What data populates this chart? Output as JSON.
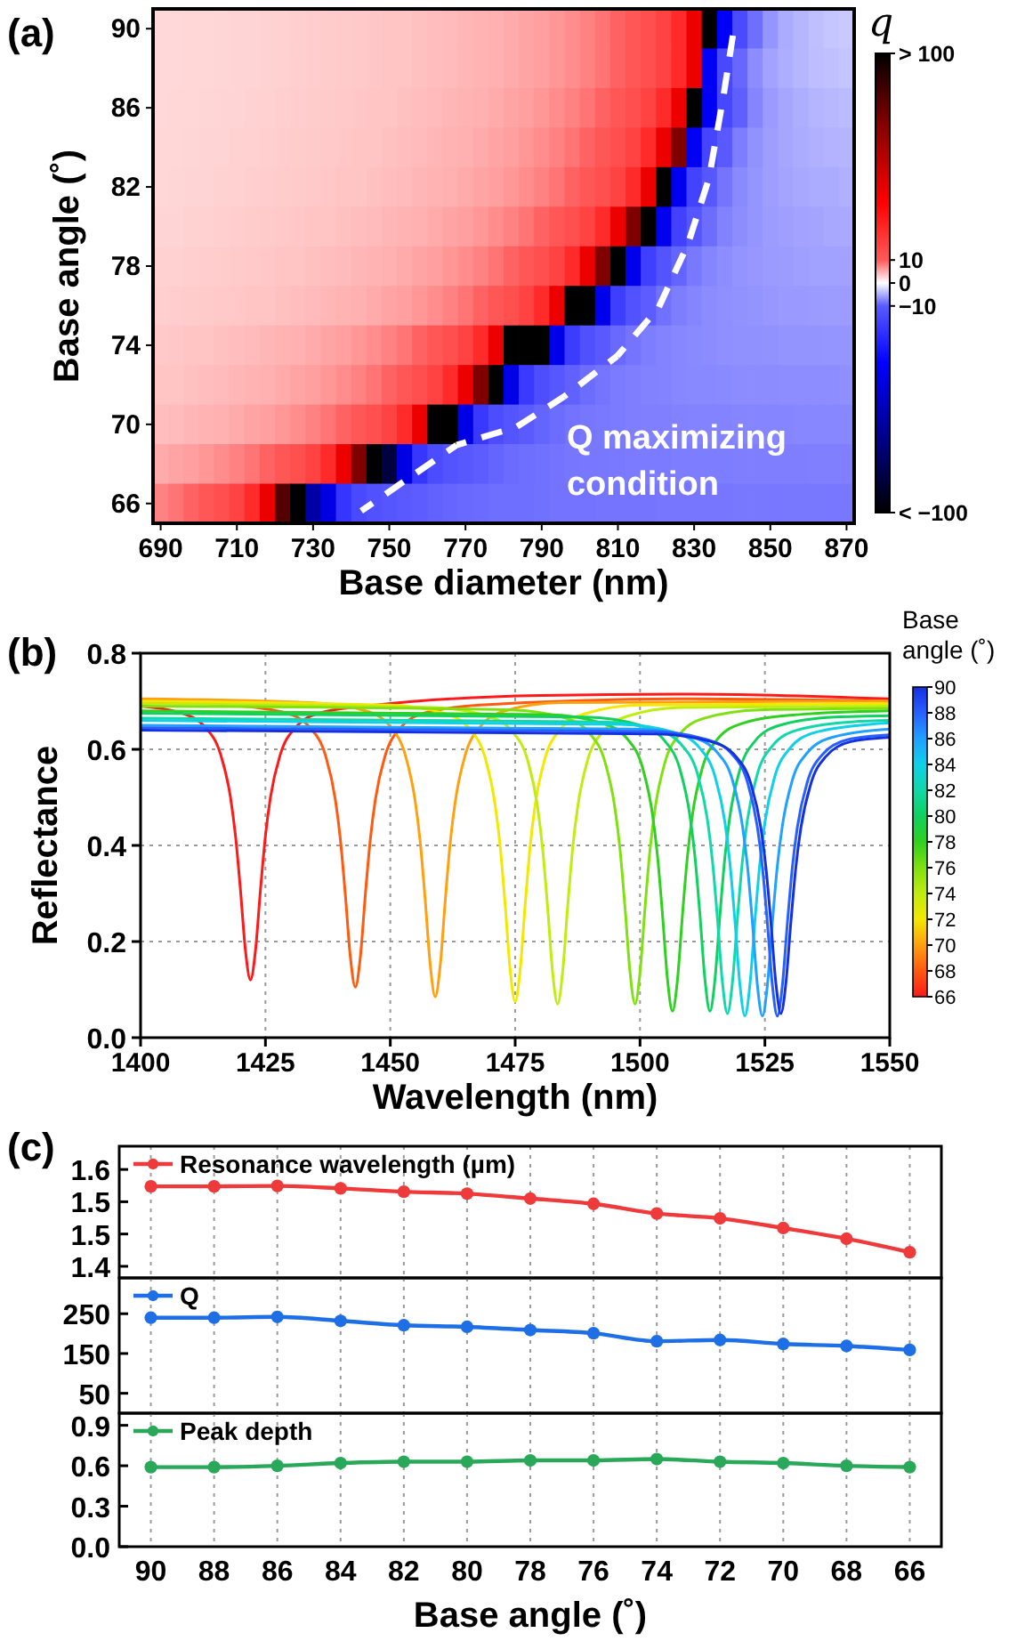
{
  "chart_data": [
    {
      "type": "heatmap",
      "title": "(a)",
      "xlabel": "Base diameter (nm)",
      "ylabel": "Base angle (˚)",
      "clabel": "q",
      "categories": [
        "690",
        null,
        null,
        null,
        null,
        "710",
        null,
        null,
        null,
        null,
        "730",
        null,
        null,
        null,
        null,
        "750",
        null,
        null,
        null,
        null,
        "770",
        null,
        null,
        null,
        null,
        "790",
        null,
        null,
        null,
        null,
        "810",
        null,
        null,
        null,
        null,
        "830",
        null,
        null,
        null,
        null,
        "850",
        null,
        null,
        null,
        null,
        "870"
      ],
      "y_categories": [
        "90",
        null,
        "86",
        null,
        "82",
        null,
        "78",
        null,
        "74",
        null,
        "70",
        null,
        "66"
      ],
      "cells": [
        [
          2.3,
          2.3,
          2.4,
          2.4,
          2.5,
          2.6,
          2.6,
          2.7,
          2.8,
          2.9,
          3,
          3.1,
          3.2,
          3.3,
          3.4,
          3.5,
          3.6,
          3.8,
          4,
          4.1,
          4.4,
          4.6,
          4.8,
          5.1,
          5.5,
          5.8,
          6.3,
          6.9,
          7.6,
          8.4,
          9.5,
          11,
          13,
          16.5,
          23,
          40,
          100,
          -37,
          -14.4,
          -8.7,
          -6.4,
          -5.1,
          -4.4,
          -3.9,
          -3.5,
          -3.3
        ],
        [
          2.3,
          2.3,
          2.4,
          2.4,
          2.5,
          2.6,
          2.6,
          2.7,
          2.8,
          2.9,
          3,
          3.1,
          3.2,
          3.3,
          3.4,
          3.5,
          3.6,
          3.8,
          4,
          4.1,
          4.4,
          4.6,
          4.8,
          5.1,
          5.5,
          5.8,
          6.3,
          6.9,
          7.6,
          8.4,
          9.5,
          11,
          13,
          16.5,
          23,
          40,
          -37.5,
          -14.9,
          -9.2,
          -6.9,
          -5.6,
          -4.9,
          -4.4,
          -4,
          -3.8,
          -3.6
        ],
        [
          2.3,
          2.4,
          2.4,
          2.5,
          2.6,
          2.6,
          2.7,
          2.8,
          2.9,
          3,
          3.1,
          3.2,
          3.3,
          3.4,
          3.5,
          3.6,
          3.8,
          4,
          4.1,
          4.4,
          4.6,
          4.8,
          5.1,
          5.5,
          5.8,
          6.3,
          6.9,
          7.6,
          8.4,
          9.5,
          11,
          13,
          16.5,
          23,
          40,
          100,
          -38,
          -15.4,
          -9.7,
          -7.4,
          -6.1,
          -5.4,
          -4.9,
          -4.5,
          -4.3,
          -4.1
        ],
        [
          2.4,
          2.4,
          2.5,
          2.6,
          2.6,
          2.7,
          2.8,
          2.9,
          3,
          3.1,
          3.2,
          3.3,
          3.4,
          3.5,
          3.6,
          3.8,
          4,
          4.1,
          4.4,
          4.6,
          4.8,
          5.1,
          5.5,
          5.8,
          6.3,
          6.9,
          7.6,
          8.4,
          9.5,
          11,
          13,
          16.5,
          23,
          40,
          70,
          -38.5,
          -15.9,
          -10.2,
          -7.9,
          -6.6,
          -5.9,
          -5.4,
          -5,
          -4.8,
          -4.6,
          -4.5
        ],
        [
          2.4,
          2.5,
          2.6,
          2.6,
          2.7,
          2.8,
          2.9,
          3,
          3.1,
          3.2,
          3.3,
          3.4,
          3.5,
          3.6,
          3.8,
          4,
          4.1,
          4.4,
          4.6,
          4.8,
          5.1,
          5.5,
          5.8,
          6.3,
          6.9,
          7.6,
          8.4,
          9.5,
          11,
          13,
          16.5,
          23,
          40,
          100,
          -39,
          -16.4,
          -10.7,
          -8.4,
          -7.1,
          -6.4,
          -5.9,
          -5.5,
          -5.3,
          -5.1,
          -5,
          -4.8
        ],
        [
          2.6,
          2.6,
          2.7,
          2.8,
          2.9,
          3,
          3.1,
          3.2,
          3.3,
          3.4,
          3.5,
          3.6,
          3.8,
          4,
          4.1,
          4.4,
          4.6,
          4.8,
          5.1,
          5.5,
          5.8,
          6.3,
          6.9,
          7.6,
          8.4,
          9.5,
          11,
          13,
          16.5,
          23,
          40,
          70,
          100,
          -39.5,
          -16.9,
          -11.2,
          -8.9,
          -7.6,
          -6.9,
          -6.4,
          -6,
          -5.8,
          -5.6,
          -5.5,
          -5.3,
          -5.2
        ],
        [
          2.7,
          2.8,
          2.9,
          3,
          3.1,
          3.2,
          3.3,
          3.4,
          3.5,
          3.6,
          3.8,
          4,
          4.1,
          4.4,
          4.6,
          4.8,
          5.1,
          5.5,
          5.8,
          6.3,
          6.9,
          7.6,
          8.4,
          9.5,
          11,
          13,
          16.5,
          23,
          40,
          70,
          100,
          -40,
          -17.4,
          -11.7,
          -9.4,
          -8.1,
          -7.4,
          -6.9,
          -6.5,
          -6.3,
          -6.1,
          -6,
          -5.8,
          -5.7,
          -5.7,
          -5.6
        ],
        [
          2.9,
          3,
          3.1,
          3.2,
          3.3,
          3.4,
          3.5,
          3.6,
          3.8,
          4,
          4.1,
          4.4,
          4.6,
          4.8,
          5.1,
          5.5,
          5.8,
          6.3,
          6.9,
          7.6,
          8.4,
          9.5,
          11,
          13,
          16.5,
          23,
          40,
          100,
          100,
          -40.5,
          -17.9,
          -12.2,
          -9.9,
          -8.6,
          -7.9,
          -7.4,
          -7,
          -6.8,
          -6.6,
          -6.5,
          -6.3,
          -6.2,
          -6.2,
          -6.1,
          -6,
          -6
        ],
        [
          3.3,
          3.4,
          3.5,
          3.6,
          3.8,
          4,
          4.1,
          4.4,
          4.6,
          4.8,
          5.1,
          5.5,
          5.8,
          6.3,
          6.9,
          7.6,
          8.4,
          9.5,
          11,
          13,
          16.5,
          23,
          40,
          100,
          100,
          100,
          -41,
          -18.4,
          -12.7,
          -10.4,
          -9.1,
          -8.4,
          -7.9,
          -7.5,
          -7.3,
          -7.1,
          -7,
          -6.8,
          -6.7,
          -6.7,
          -6.6,
          -6.5,
          -6.5,
          -6.5,
          -6.4,
          -6.4
        ],
        [
          3.5,
          3.6,
          3.8,
          4,
          4.1,
          4.4,
          4.6,
          4.8,
          5.1,
          5.5,
          5.8,
          6.3,
          6.9,
          7.6,
          8.4,
          9.5,
          11,
          13,
          16.5,
          23,
          40,
          70,
          100,
          -41.5,
          -18.9,
          -13.2,
          -10.9,
          -9.6,
          -8.9,
          -8.4,
          -8,
          -7.8,
          -7.6,
          -7.5,
          -7.3,
          -7.2,
          -7.2,
          -7.1,
          -7,
          -7,
          -7,
          -6.9,
          -6.9,
          -6.9,
          -6.9,
          -6.8
        ],
        [
          4,
          4.1,
          4.4,
          4.6,
          4.8,
          5.1,
          5.5,
          5.8,
          6.3,
          6.9,
          7.6,
          8.4,
          9.5,
          11,
          13,
          16.5,
          23,
          40,
          100,
          100,
          -42,
          -19.4,
          -13.7,
          -11.4,
          -10.1,
          -9.4,
          -8.9,
          -8.5,
          -8.3,
          -8.1,
          -8,
          -7.8,
          -7.7,
          -7.7,
          -7.6,
          -7.5,
          -7.5,
          -7.5,
          -7.4,
          -7.4,
          -7.4,
          -7.4,
          -7.3,
          -7.3,
          -7.3,
          -7.3
        ],
        [
          5.1,
          5.5,
          5.8,
          6.3,
          6.9,
          7.6,
          8.4,
          9.5,
          11,
          13,
          16.5,
          23,
          40,
          70,
          100,
          -85,
          -42.5,
          -19.9,
          -14.2,
          -11.9,
          -10.6,
          -9.9,
          -9.4,
          -9,
          -8.8,
          -8.6,
          -8.5,
          -8.3,
          -8.2,
          -8.2,
          -8.1,
          -8,
          -8,
          -8,
          -7.9,
          -7.9,
          -7.9,
          -7.9,
          -7.8,
          -7.8,
          -7.8,
          -7.8,
          -7.8,
          -7.7,
          -7.7,
          -7.7
        ],
        [
          7.6,
          8.4,
          9.5,
          11,
          13,
          16.5,
          23,
          40,
          80,
          100,
          -60,
          -43,
          -20.4,
          -14.7,
          -12.4,
          -11.1,
          -10.4,
          -9.9,
          -9.5,
          -9.3,
          -9.1,
          -9,
          -8.8,
          -8.7,
          -8.7,
          -8.6,
          -8.5,
          -8.5,
          -8.5,
          -8.4,
          -8.4,
          -8.4,
          -8.4,
          -8.3,
          -8.3,
          -8.3,
          -8.3,
          -8.3,
          -8.2,
          -8.2,
          -8.2,
          -8.2,
          -8.2,
          -8.2,
          -8.2,
          -8.2
        ]
      ],
      "clim": [
        -100,
        100
      ],
      "cticks": [
        {
          "value": 100,
          "label": "> 100"
        },
        10,
        0,
        {
          "value": -10,
          "label": "−10"
        },
        {
          "value": -100,
          "label": "< −100"
        }
      ],
      "annotations": [
        "Q maximizing\ncondition"
      ]
    },
    {
      "type": "line",
      "title": "(b)",
      "xlabel": "Wavelength (nm)",
      "ylabel": "Reflectance",
      "xlim": [
        1400,
        1550
      ],
      "xticks": [
        1400,
        1425,
        1450,
        1475,
        1500,
        1525,
        1550
      ],
      "ylim": [
        0,
        0.8
      ],
      "yticks": [
        {
          "value": 0,
          "label": "0.0"
        },
        0.2,
        0.4,
        0.6,
        0.8
      ],
      "grid": true,
      "clabel": "Base angle (˚)",
      "clim": [
        66,
        90
      ],
      "cticks": [
        66,
        68,
        70,
        72,
        74,
        76,
        78,
        80,
        82,
        84,
        86,
        88,
        90
      ],
      "series": [
        {
          "color": "#ff1a1a",
          "x": [
            1400,
            1408,
            1413,
            1416,
            1418,
            1419,
            1420,
            1421,
            1422,
            1423,
            1424,
            1425,
            1426,
            1428,
            1431,
            1436,
            1447,
            1480,
            1510,
            1550
          ],
          "values": [
            0.69,
            0.676,
            0.645,
            0.59,
            0.5,
            0.42,
            0.307,
            0.181,
            0.12,
            0.181,
            0.307,
            0.42,
            0.5,
            0.59,
            0.645,
            0.676,
            0.692,
            0.712,
            0.715,
            0.705
          ]
        },
        {
          "color": "#ff5a10",
          "x": [
            1400,
            1418,
            1429,
            1434,
            1437,
            1439,
            1440,
            1441,
            1442,
            1443,
            1444,
            1445,
            1446,
            1447,
            1449,
            1452,
            1457,
            1468,
            1510,
            1550
          ],
          "values": [
            0.7,
            0.692,
            0.676,
            0.644,
            0.588,
            0.495,
            0.413,
            0.297,
            0.168,
            0.105,
            0.168,
            0.297,
            0.413,
            0.495,
            0.588,
            0.644,
            0.676,
            0.692,
            0.705,
            0.7
          ]
        },
        {
          "color": "#ffa010",
          "x": [
            1400,
            1434,
            1445,
            1450,
            1453,
            1455,
            1456,
            1457,
            1458,
            1459,
            1460,
            1461,
            1462,
            1463,
            1465,
            1468,
            1473,
            1484,
            1550
          ],
          "values": [
            0.705,
            0.697,
            0.68,
            0.647,
            0.588,
            0.491,
            0.406,
            0.285,
            0.151,
            0.085,
            0.151,
            0.285,
            0.406,
            0.491,
            0.588,
            0.647,
            0.68,
            0.697,
            0.7
          ]
        },
        {
          "color": "#f2e800",
          "x": [
            1400,
            1450,
            1461,
            1466,
            1469,
            1471,
            1472,
            1473,
            1474,
            1475,
            1476,
            1477,
            1478,
            1479,
            1481,
            1484,
            1489,
            1500,
            1550
          ],
          "values": [
            0.7,
            0.692,
            0.674,
            0.641,
            0.582,
            0.484,
            0.398,
            0.276,
            0.141,
            0.075,
            0.141,
            0.276,
            0.398,
            0.484,
            0.582,
            0.641,
            0.674,
            0.692,
            0.695
          ]
        },
        {
          "color": "#c0ec10",
          "x": [
            1400,
            1458.5,
            1469.5,
            1474.5,
            1477.5,
            1479.5,
            1480.5,
            1481.5,
            1482.5,
            1483.5,
            1484.5,
            1485.5,
            1486.5,
            1487.5,
            1489.5,
            1492.5,
            1497.5,
            1508.5,
            1550
          ],
          "values": [
            0.695,
            0.687,
            0.669,
            0.636,
            0.577,
            0.479,
            0.393,
            0.271,
            0.136,
            0.07,
            0.136,
            0.271,
            0.393,
            0.479,
            0.577,
            0.636,
            0.669,
            0.687,
            0.69
          ]
        },
        {
          "color": "#80e010",
          "x": [
            1400,
            1474,
            1485,
            1490,
            1493,
            1495,
            1496,
            1497,
            1498,
            1499,
            1500,
            1501,
            1502,
            1503,
            1505,
            1508,
            1513,
            1524,
            1550
          ],
          "values": [
            0.69,
            0.682,
            0.665,
            0.632,
            0.573,
            0.476,
            0.391,
            0.27,
            0.136,
            0.07,
            0.136,
            0.27,
            0.391,
            0.476,
            0.573,
            0.632,
            0.665,
            0.682,
            0.685
          ]
        },
        {
          "color": "#30d020",
          "x": [
            1400,
            1481.5,
            1492.5,
            1497.5,
            1500.5,
            1502.5,
            1503.5,
            1504.5,
            1505.5,
            1506.5,
            1507.5,
            1508.5,
            1509.5,
            1510.5,
            1512.5,
            1515.5,
            1520.5,
            1531.5,
            1550
          ],
          "values": [
            0.68,
            0.672,
            0.654,
            0.621,
            0.562,
            0.464,
            0.378,
            0.256,
            0.121,
            0.055,
            0.121,
            0.256,
            0.378,
            0.464,
            0.562,
            0.621,
            0.654,
            0.672,
            0.68
          ]
        },
        {
          "color": "#10d060",
          "x": [
            1400,
            1489,
            1500,
            1505,
            1508,
            1510,
            1511,
            1512,
            1513,
            1514,
            1515,
            1516,
            1517,
            1518,
            1520,
            1523,
            1528,
            1539,
            1550
          ],
          "values": [
            0.675,
            0.667,
            0.65,
            0.617,
            0.558,
            0.461,
            0.376,
            0.255,
            0.121,
            0.055,
            0.121,
            0.255,
            0.376,
            0.461,
            0.558,
            0.617,
            0.65,
            0.667,
            0.67
          ]
        },
        {
          "color": "#10d8a8",
          "x": [
            1400,
            1492.5,
            1503.5,
            1508.5,
            1511.5,
            1513.5,
            1514.5,
            1515.5,
            1516.5,
            1517.5,
            1518.5,
            1519.5,
            1520.5,
            1521.5,
            1523.5,
            1526.5,
            1531.5,
            1542.5,
            1550
          ],
          "values": [
            0.665,
            0.657,
            0.64,
            0.607,
            0.549,
            0.453,
            0.368,
            0.248,
            0.115,
            0.05,
            0.115,
            0.248,
            0.368,
            0.453,
            0.549,
            0.607,
            0.64,
            0.657,
            0.66
          ]
        },
        {
          "color": "#10d0e8",
          "x": [
            1400,
            1496,
            1507,
            1512,
            1515,
            1517,
            1518,
            1519,
            1520,
            1521,
            1522,
            1523,
            1524,
            1525,
            1527,
            1530,
            1535,
            1546,
            1550
          ],
          "values": [
            0.66,
            0.652,
            0.635,
            0.602,
            0.544,
            0.448,
            0.363,
            0.243,
            0.11,
            0.045,
            0.11,
            0.243,
            0.363,
            0.448,
            0.544,
            0.602,
            0.635,
            0.652,
            0.655
          ]
        },
        {
          "color": "#20a0ff",
          "x": [
            1400,
            1499.5,
            1510.5,
            1515.5,
            1518.5,
            1520.5,
            1521.5,
            1522.5,
            1523.5,
            1524.5,
            1525.5,
            1526.5,
            1527.5,
            1528.5,
            1530.5,
            1533.5,
            1538.5,
            1550
          ],
          "values": [
            0.65,
            0.642,
            0.625,
            0.593,
            0.536,
            0.441,
            0.358,
            0.24,
            0.109,
            0.045,
            0.109,
            0.24,
            0.358,
            0.441,
            0.536,
            0.593,
            0.625,
            0.642
          ]
        },
        {
          "color": "#2860ff",
          "x": [
            1400,
            1502.5,
            1513.5,
            1518.5,
            1521.5,
            1523.5,
            1524.5,
            1525.5,
            1526.5,
            1527.5,
            1528.5,
            1529.5,
            1530.5,
            1531.5,
            1533.5,
            1536.5,
            1541.5,
            1550
          ],
          "values": [
            0.645,
            0.637,
            0.62,
            0.589,
            0.532,
            0.438,
            0.355,
            0.238,
            0.109,
            0.045,
            0.109,
            0.238,
            0.355,
            0.438,
            0.532,
            0.589,
            0.62,
            0.63
          ]
        },
        {
          "color": "#1430e0",
          "x": [
            1400,
            1503.2,
            1514.2,
            1519.2,
            1522.2,
            1524.2,
            1525.2,
            1526.2,
            1527.2,
            1528.2,
            1529.2,
            1530.2,
            1531.2,
            1532.2,
            1534.2,
            1537.2,
            1542.2,
            1550
          ],
          "values": [
            0.64,
            0.632,
            0.616,
            0.585,
            0.528,
            0.436,
            0.355,
            0.24,
            0.113,
            0.05,
            0.113,
            0.24,
            0.355,
            0.436,
            0.528,
            0.585,
            0.616,
            0.625
          ]
        }
      ]
    },
    {
      "type": "line",
      "title": "(c)",
      "categories": [
        "90",
        "88",
        "86",
        "84",
        "82",
        "80",
        "78",
        "76",
        "74",
        "72",
        "70",
        "68",
        "66"
      ],
      "ylim": [
        1.376,
        1.648
      ],
      "yticks": [
        1.4,
        {
          "value": 1.4667,
          "label": "1.5"
        },
        {
          "value": 1.5333,
          "label": "1.5"
        },
        1.6
      ],
      "grid": "x",
      "legend": "top left",
      "marker": "circle",
      "tick_labels": "y",
      "series": [
        {
          "name": "Resonance wavelength (µm)",
          "color": "#ee3a3a",
          "values": [
            1.565,
            1.565,
            1.566,
            1.561,
            1.554,
            1.55,
            1.54,
            1.529,
            1.509,
            1.499,
            1.479,
            1.457,
            1.429
          ]
        }
      ]
    },
    {
      "type": "line",
      "categories": [
        "90",
        "88",
        "86",
        "84",
        "82",
        "80",
        "78",
        "76",
        "74",
        "72",
        "70",
        "68",
        "66"
      ],
      "ylim": [
        0,
        340
      ],
      "yticks": [
        50,
        150,
        250
      ],
      "grid": "x",
      "legend": "top left",
      "marker": "circle",
      "tick_labels": "y",
      "series": [
        {
          "name": "Q",
          "color": "#1e6ee6",
          "values": [
            240,
            240,
            242,
            232,
            221,
            217,
            209,
            201,
            181,
            184,
            174,
            169,
            159
          ]
        }
      ]
    },
    {
      "type": "line",
      "xlabel": "Base angle (˚)",
      "categories": [
        "90",
        "88",
        "86",
        "84",
        "82",
        "80",
        "78",
        "76",
        "74",
        "72",
        "70",
        "68",
        "66"
      ],
      "ylim": [
        0,
        0.99
      ],
      "yticks": [
        {
          "value": 0,
          "label": "0.0"
        },
        0.3,
        0.6,
        0.9
      ],
      "grid": "x",
      "legend": "top left",
      "marker": "circle",
      "series": [
        {
          "name": "Peak depth",
          "color": "#2aa85a",
          "values": [
            0.59,
            0.59,
            0.6,
            0.62,
            0.63,
            0.63,
            0.64,
            0.64,
            0.65,
            0.63,
            0.62,
            0.6,
            0.59
          ]
        }
      ]
    }
  ]
}
